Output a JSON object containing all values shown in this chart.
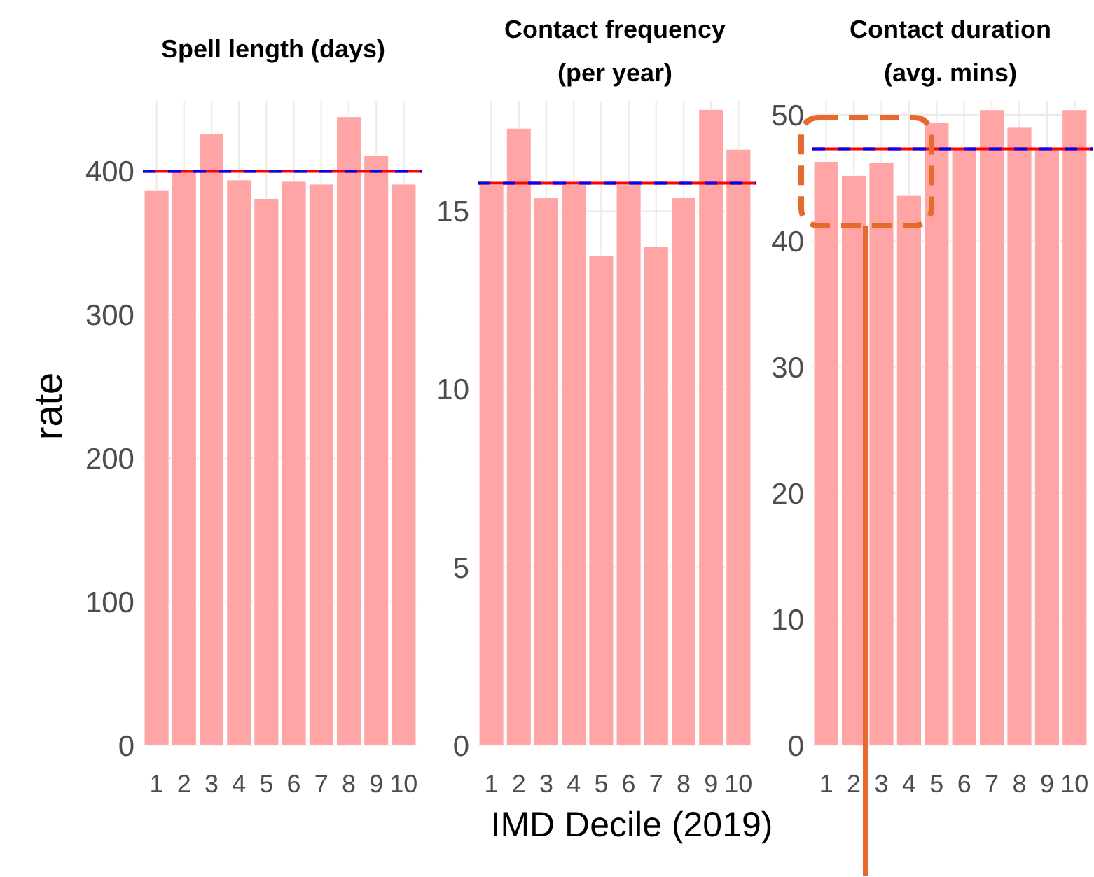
{
  "chart_data": [
    {
      "type": "bar",
      "title": "Spell length (days)",
      "ylabel": "rate",
      "categories": [
        "1",
        "2",
        "3",
        "4",
        "5",
        "6",
        "7",
        "8",
        "9",
        "10"
      ],
      "values": [
        387,
        400,
        426,
        394,
        381,
        393,
        391,
        438,
        411,
        391
      ],
      "color": "#ffa5a5",
      "ylim": [
        0,
        449
      ],
      "yticks": [
        0,
        100,
        200,
        300,
        400
      ],
      "grid": true,
      "ref_lines": [
        {
          "axis": "y",
          "value": 400,
          "color": "#ff0000",
          "line_style": "solid"
        },
        {
          "axis": "y",
          "value": 400,
          "color": "#0000ff",
          "line_style": "dashed"
        }
      ]
    },
    {
      "type": "bar",
      "title": "Contact frequency (per year)",
      "xlabel": "IMD Decile (2019)",
      "categories": [
        "1",
        "2",
        "3",
        "4",
        "5",
        "6",
        "7",
        "8",
        "9",
        "10"
      ],
      "values": [
        15.75,
        17.33,
        15.38,
        15.75,
        13.75,
        15.75,
        14.0,
        15.38,
        17.86,
        16.74
      ],
      "color": "#ffa5a5",
      "ylim": [
        0,
        18.1
      ],
      "yticks": [
        0,
        5,
        10,
        15
      ],
      "grid": true,
      "ref_lines": [
        {
          "axis": "y",
          "value": 15.79,
          "color": "#ff0000",
          "line_style": "solid"
        },
        {
          "axis": "y",
          "value": 15.79,
          "color": "#0000ff",
          "line_style": "dashed"
        }
      ]
    },
    {
      "type": "bar",
      "title": "Contact duration (avg. mins)",
      "categories": [
        "1",
        "2",
        "3",
        "4",
        "5",
        "6",
        "7",
        "8",
        "9",
        "10"
      ],
      "values": [
        46.3,
        45.2,
        46.2,
        43.6,
        49.4,
        47.3,
        50.4,
        49.0,
        47.3,
        50.4
      ],
      "color": "#ffa5a5",
      "ylim": [
        0,
        51.1
      ],
      "yticks": [
        0,
        10,
        20,
        30,
        40,
        50
      ],
      "grid": true,
      "ref_lines": [
        {
          "axis": "y",
          "value": 47.3,
          "color": "#ff0000",
          "line_style": "solid"
        },
        {
          "axis": "y",
          "value": 47.3,
          "color": "#0000ff",
          "line_style": "dashed"
        }
      ]
    }
  ]
}
